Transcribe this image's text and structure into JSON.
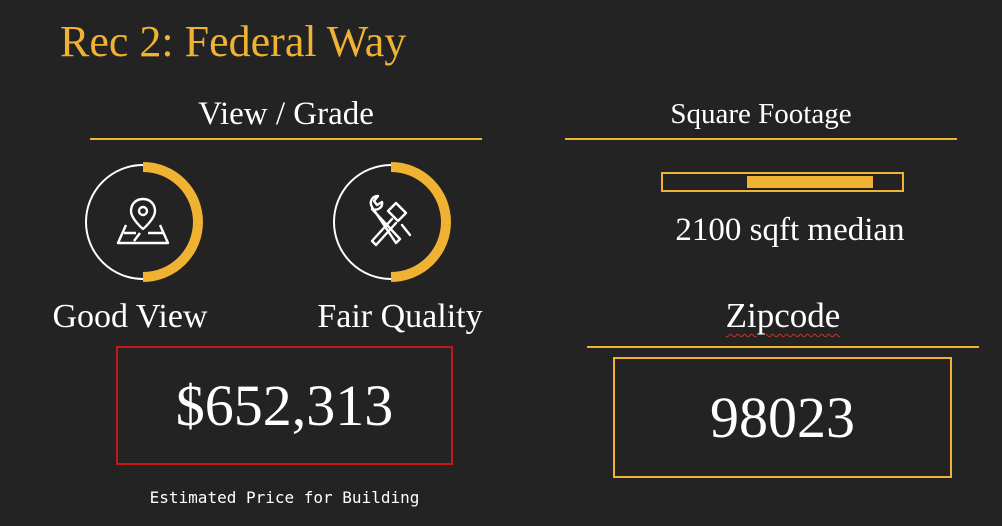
{
  "title": "Rec 2: Federal Way",
  "view_grade": {
    "heading": "View / Grade",
    "view": {
      "label": "Good View",
      "icon": "map-pin-icon",
      "level": 0.5
    },
    "quality": {
      "label": "Fair Quality",
      "icon": "tools-icon",
      "level": 0.5
    }
  },
  "square_footage": {
    "heading": "Square Footage",
    "range_start": 0.35,
    "range_end": 0.88,
    "label": "2100 sqft median"
  },
  "price": {
    "value": "$652,313",
    "caption": "Estimated Price for Building"
  },
  "zipcode": {
    "heading": "Zipcode",
    "value": "98023"
  },
  "colors": {
    "accent": "#f0b233",
    "background": "#232323",
    "price_border": "#c81515",
    "text": "#ffffff"
  }
}
